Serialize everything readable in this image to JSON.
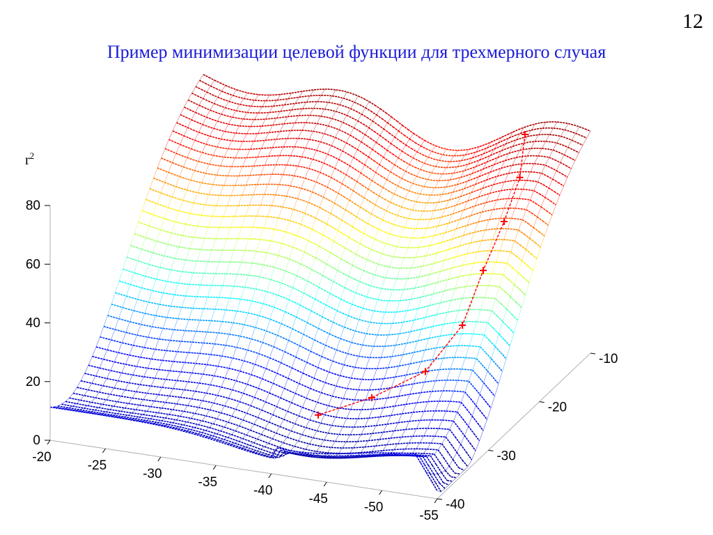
{
  "slide": {
    "number": "12",
    "title": "Пример минимизации целевой функции для трехмерного случая"
  },
  "chart_data": {
    "type": "surface",
    "title": "Пример минимизации целевой функции для трехмерного случая",
    "zlabel": "r",
    "zlabel_sup": "2",
    "x_axis": {
      "ticks": [
        -20,
        -25,
        -30,
        -35,
        -40,
        -45,
        -50,
        -55
      ],
      "range": [
        -55,
        -20
      ]
    },
    "y_axis": {
      "ticks": [
        -10,
        -20,
        -30,
        -40
      ],
      "range": [
        -40,
        -10
      ]
    },
    "z_axis": {
      "ticks": [
        0,
        20,
        40,
        60,
        80
      ],
      "range": [
        0,
        80
      ]
    },
    "colormap": [
      "#00008f",
      "#0000ff",
      "#00ffff",
      "#ffff00",
      "#ff0000",
      "#800000"
    ],
    "trajectory": {
      "color": "#ff0000",
      "points": [
        {
          "x": -50,
          "y": -12,
          "z": 75
        },
        {
          "x": -50,
          "y": -13,
          "z": 62
        },
        {
          "x": -49.5,
          "y": -15,
          "z": 50
        },
        {
          "x": -49,
          "y": -18,
          "z": 38
        },
        {
          "x": -48.5,
          "y": -21,
          "z": 24
        },
        {
          "x": -47,
          "y": -25,
          "z": 14
        },
        {
          "x": -44,
          "y": -29,
          "z": 10
        },
        {
          "x": -41,
          "y": -33,
          "z": 9
        }
      ]
    },
    "grid": false
  }
}
